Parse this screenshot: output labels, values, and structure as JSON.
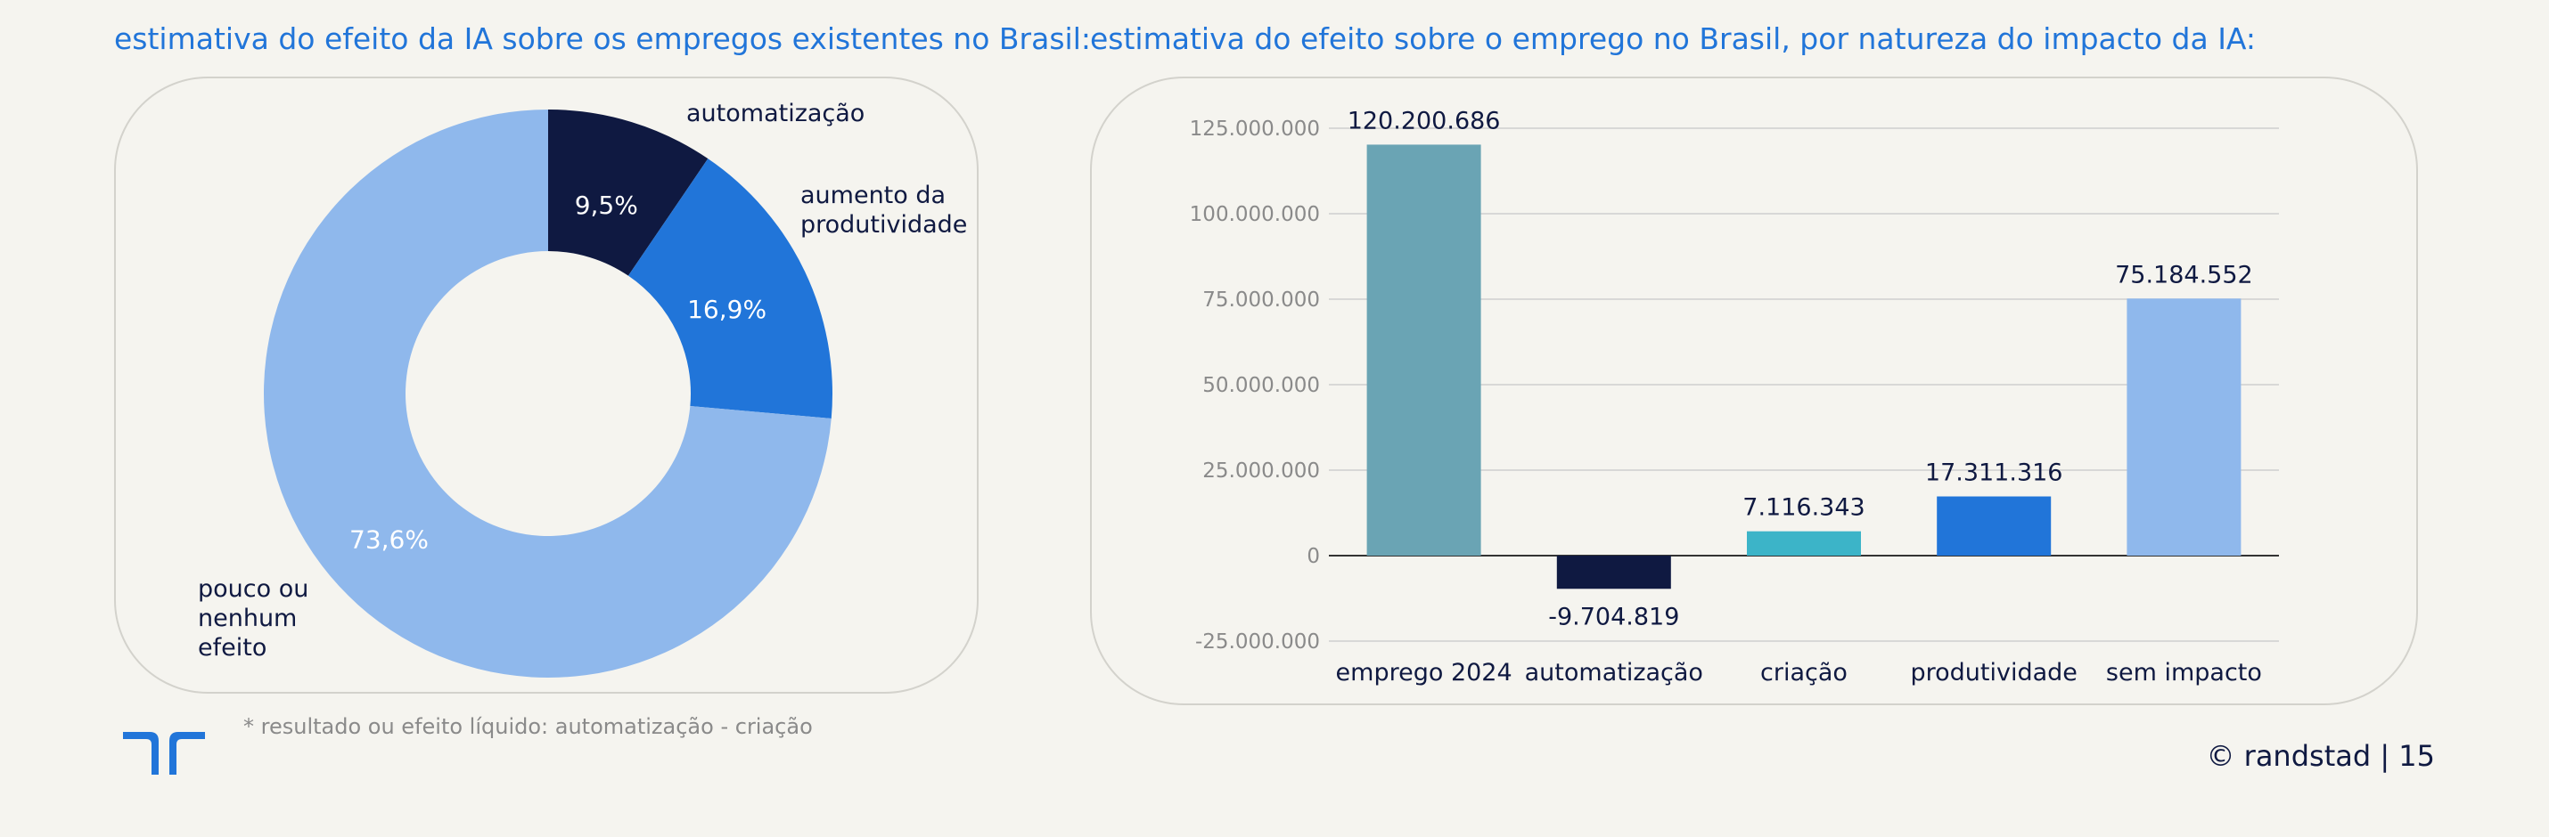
{
  "colors": {
    "title": "#2175d9",
    "navy": "#0f1941",
    "blue": "#2175d9",
    "light_blue": "#8fb8ec",
    "teal": "#6aa4b4",
    "cyan": "#3cb4c8",
    "gridline": "#cfcfcf",
    "tick": "#8a8a8a",
    "background": "#f5f4ef"
  },
  "left": {
    "title": "estimativa do efeito da IA sobre os empregos existentes no Brasil:"
  },
  "right": {
    "title": "estimativa do efeito sobre o emprego no Brasil, por natureza do impacto da IA:"
  },
  "footnote": "* resultado ou efeito líquido: automatização - criação",
  "footer": {
    "copyright": "© randstad | 15"
  },
  "logo": {
    "icon": "randstad-logo-icon"
  },
  "chart_data": [
    {
      "type": "pie",
      "donut": true,
      "slices": [
        {
          "label": "automatização",
          "value": 9.5,
          "display": "9,5%",
          "color": "#0f1941"
        },
        {
          "label": "aumento da produtividade",
          "label_lines": [
            "aumento da",
            "produtividade"
          ],
          "value": 16.9,
          "display": "16,9%",
          "color": "#2175d9"
        },
        {
          "label": "pouco ou nenhum efeito",
          "label_lines": [
            "pouco ou",
            "nenhum",
            "efeito"
          ],
          "value": 73.6,
          "display": "73,6%",
          "color": "#8fb8ec"
        }
      ]
    },
    {
      "type": "bar",
      "categories": [
        "emprego 2024",
        "automatização",
        "criação",
        "produtividade",
        "sem impacto"
      ],
      "values": [
        120200686,
        -9704819,
        7116343,
        17311316,
        75184552
      ],
      "value_labels": [
        "120.200.686",
        "-9.704.819",
        "7.116.343",
        "17.311.316",
        "75.184.552"
      ],
      "colors": [
        "#6aa4b4",
        "#0f1941",
        "#3cb4c8",
        "#2175d9",
        "#8fb8ec"
      ],
      "ylim": [
        -25000000,
        125000000
      ],
      "yticks": [
        125000000,
        100000000,
        75000000,
        50000000,
        25000000,
        0,
        -25000000
      ],
      "ytick_labels": [
        "125.000.000",
        "100.000.000",
        "75.000.000",
        "50.000.000",
        "25.000.000",
        "0",
        "-25.000.000"
      ],
      "grid": true
    }
  ]
}
